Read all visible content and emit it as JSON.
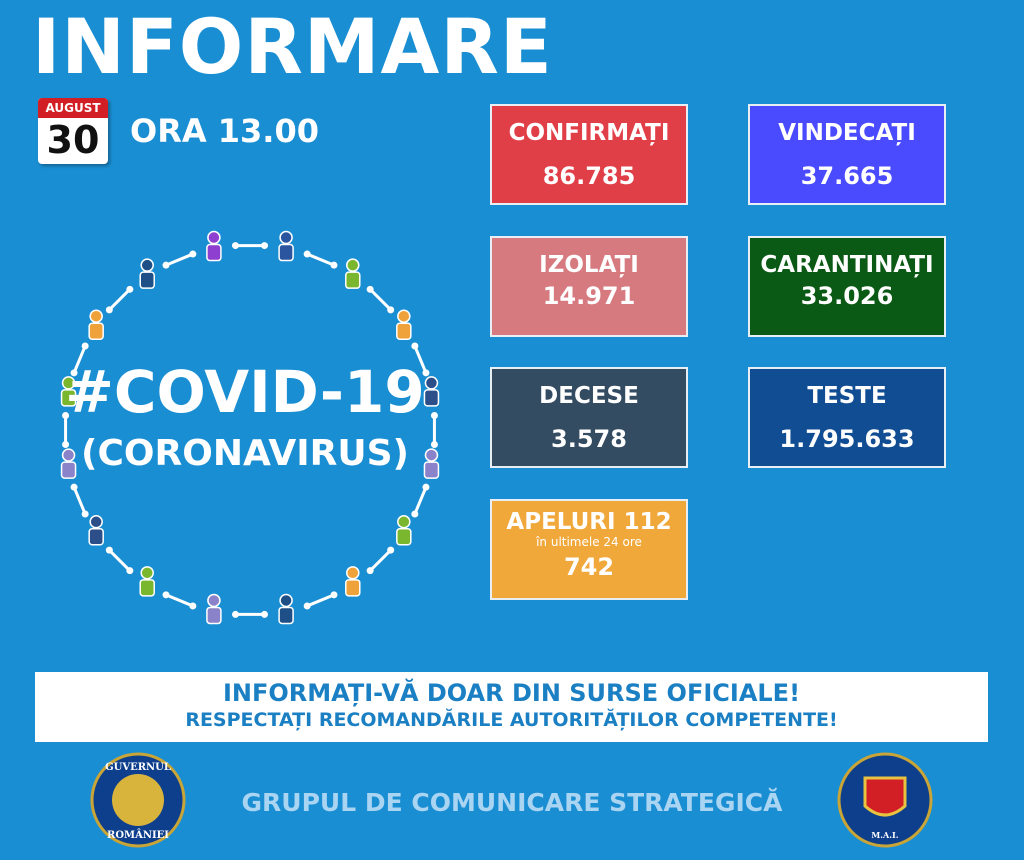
{
  "header": {
    "title": "INFORMARE",
    "month": "AUGUST",
    "day": "30",
    "time": "ORA 13.00"
  },
  "covid": {
    "hashtag": "#COVID-19",
    "subtitle": "(CORONAVIRUS)"
  },
  "stats": [
    {
      "label": "CONFIRMAȚI",
      "value": "86.785"
    },
    {
      "label": "VINDECAȚI",
      "value": "37.665"
    },
    {
      "label": "IZOLAȚI",
      "value": "14.971"
    },
    {
      "label": "CARANTINAȚI",
      "value": "33.026"
    },
    {
      "label": "DECESE",
      "value": "3.578"
    },
    {
      "label": "TESTE",
      "value": "1.795.633"
    },
    {
      "label": "APELURI 112",
      "note": "în ultimele 24 ore",
      "value": "742"
    }
  ],
  "banner": {
    "line1": "INFORMAȚI-VĂ DOAR DIN SURSE OFICIALE!",
    "line2": "RESPECTAȚI RECOMANDĂRILE AUTORITĂȚILOR COMPETENTE!"
  },
  "footer": {
    "org": "GRUPUL DE COMUNICARE STRATEGICĂ",
    "left_top": "GUVERNUL",
    "left_bottom": "ROMÂNIEI",
    "right_bottom": "M.A.I."
  }
}
